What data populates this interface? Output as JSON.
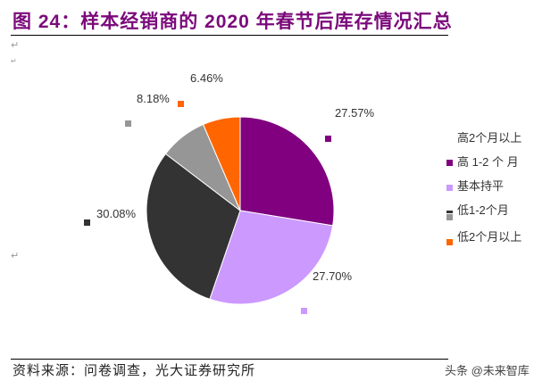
{
  "title": "图 24：样本经销商的 2020 年春节后库存情况汇总",
  "source": "资料来源：问卷调查，光大证券研究所",
  "watermark": "头条 @未来智库",
  "chart_data": {
    "type": "pie",
    "start": "top",
    "direction": "clockwise",
    "slices": [
      {
        "label": "高1-2个月",
        "value": 27.57,
        "text": "27.57%",
        "color": "#800080"
      },
      {
        "label": "基本持平",
        "value": 27.7,
        "text": "27.70%",
        "color": "#cc99ff"
      },
      {
        "label": "低1-2个月",
        "value": 30.08,
        "text": "30.08%",
        "color": "#333333"
      },
      {
        "label": "低2个月以上",
        "value": 8.18,
        "text": "8.18%",
        "color": "#969696"
      },
      {
        "label": "高2个月以上",
        "value": 6.46,
        "text": "6.46%",
        "color": "#ff6600"
      }
    ],
    "legend": [
      "高2个月以上",
      "高 1-2 个 月",
      "基本持平",
      "低1-2个月",
      "低2个月以上"
    ],
    "legend_placement": "right"
  }
}
